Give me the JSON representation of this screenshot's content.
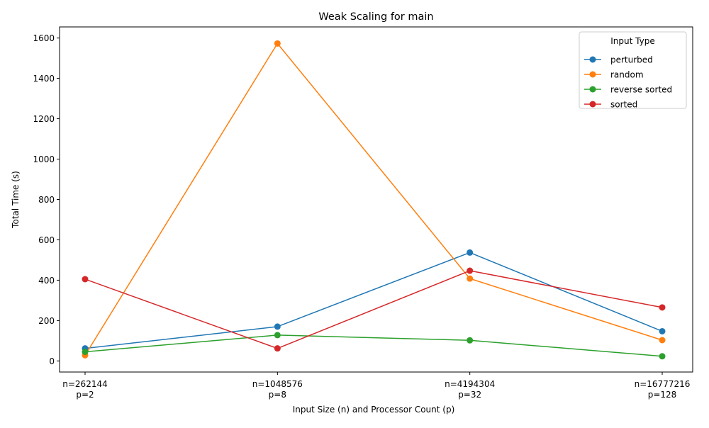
{
  "chart_data": {
    "type": "line",
    "title": "Weak Scaling for main",
    "xlabel": "Input Size (n) and Processor Count (p)",
    "ylabel": "Total Time (s)",
    "categories": [
      [
        "n=262144",
        "p=2"
      ],
      [
        "n=1048576",
        "p=8"
      ],
      [
        "n=4194304",
        "p=32"
      ],
      [
        "n=16777216",
        "p=128"
      ]
    ],
    "ylim": [
      -55,
      1655
    ],
    "yticks": [
      0,
      200,
      400,
      600,
      800,
      1000,
      1200,
      1400,
      1600
    ],
    "grid": false,
    "legend": {
      "title": "Input Type",
      "placement": "top-right"
    },
    "series": [
      {
        "name": "perturbed",
        "color": "#1f77b4",
        "values": [
          62,
          170,
          537,
          147
        ]
      },
      {
        "name": "random",
        "color": "#ff7f0e",
        "values": [
          28,
          1573,
          408,
          103
        ]
      },
      {
        "name": "reverse sorted",
        "color": "#2ca02c",
        "values": [
          45,
          128,
          102,
          23
        ]
      },
      {
        "name": "sorted",
        "color": "#d62728",
        "values": [
          405,
          62,
          447,
          265
        ]
      }
    ]
  }
}
